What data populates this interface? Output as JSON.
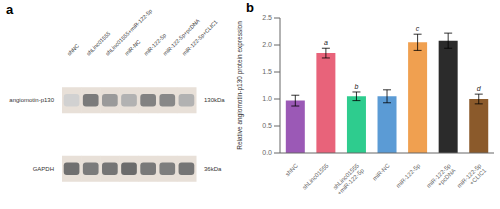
{
  "chart_data": [
    {
      "type": "blot",
      "title": "a",
      "categories": [
        "shNC",
        "shLinc01555",
        "shLinc01555+miR-122-5p",
        "miR-NC",
        "miR-122-5p",
        "miR-122-5p+pcDNA",
        "miR-122-5p+CLIC1"
      ],
      "series": [
        {
          "name": "angiomotin-p130",
          "values": [
            0.25,
            0.72,
            0.55,
            0.42,
            0.68,
            0.65,
            0.42
          ]
        },
        {
          "name": "GAPDH",
          "values": [
            0.78,
            0.72,
            0.75,
            0.8,
            0.73,
            0.7,
            0.75
          ]
        }
      ],
      "annotations": [
        "130kDa",
        "36kDa"
      ],
      "color": "#e8e0d8"
    },
    {
      "type": "bar",
      "title": "b",
      "categories": [
        "shNC",
        "shLinc01555",
        "shLinc01555\n+miR-122-5p",
        "miR-NC",
        "miR-122-5p",
        "miR-122-5p\n+pcDNA",
        "miR-122-5p\n+CLIC1"
      ],
      "values": [
        0.97,
        1.85,
        1.05,
        1.05,
        2.05,
        2.08,
        1.0
      ],
      "errors": [
        0.1,
        0.09,
        0.08,
        0.12,
        0.15,
        0.14,
        0.09
      ],
      "colors": [
        "#9B59B6",
        "#E8637A",
        "#2ECC8E",
        "#5B9BD5",
        "#F0A050",
        "#2B2B2B",
        "#8B5A2B"
      ],
      "annotations": [
        null,
        "a",
        "b",
        null,
        "c",
        null,
        "d"
      ],
      "ylabel": "Relative angiomotin-p130 protein expression",
      "ylim": [
        0,
        2.5
      ],
      "yticks": [
        {
          "value": 0,
          "label": "0.0"
        },
        0.5,
        {
          "value": 1,
          "label": "1.0"
        },
        1.5,
        {
          "value": 2,
          "label": "2.0"
        },
        2.5
      ]
    }
  ]
}
